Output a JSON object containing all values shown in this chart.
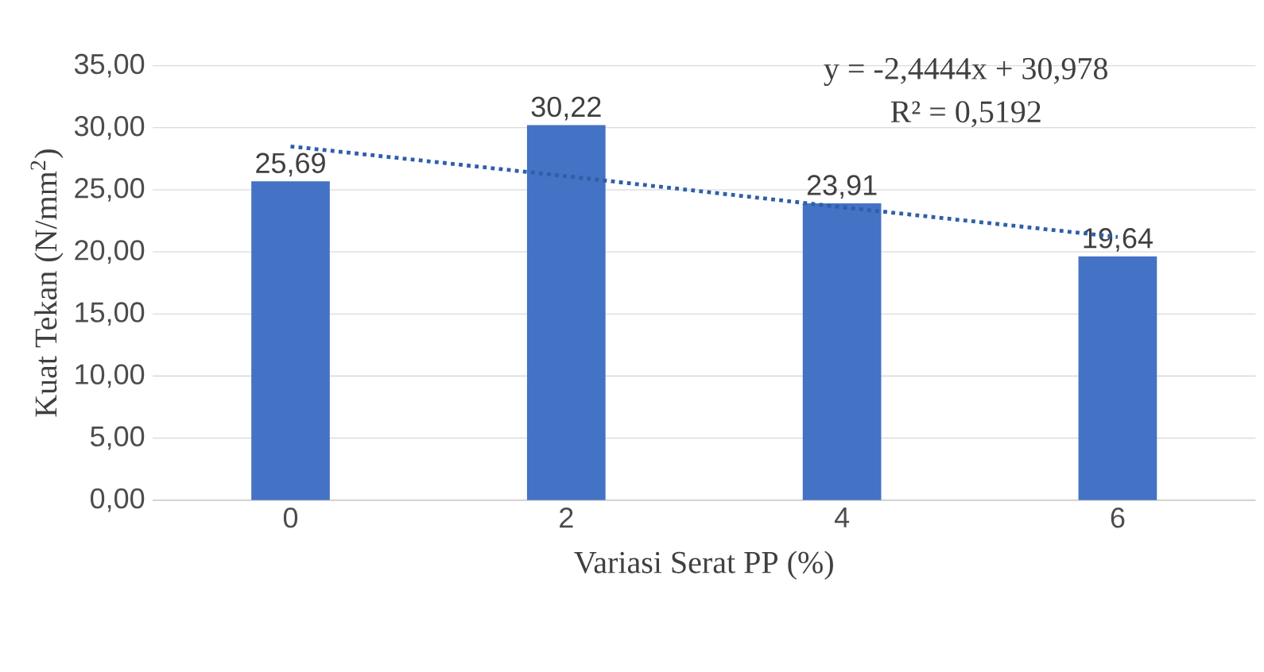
{
  "chart_data": {
    "type": "bar",
    "xlabel": "Variasi Serat PP (%)",
    "ylabel": "Kuat Tekan (N/mm$^{2}$)",
    "categories": [
      "0",
      "2",
      "4",
      "6"
    ],
    "series": [
      {
        "color": "#4472c4",
        "values": [
          25.69,
          30.22,
          23.91,
          19.64
        ],
        "value_labels": [
          "25,69",
          "30,22",
          "23,91",
          "19,64"
        ]
      },
      {
        "type": "line",
        "x": [
          "0",
          "2",
          "4",
          "6"
        ],
        "values": [
          28.5,
          26.1,
          23.6,
          21.2
        ],
        "color": "#2e5fa8",
        "line_style": "dotted",
        "marker": "none"
      }
    ],
    "ylim": [
      0,
      35
    ],
    "yticks": [
      {
        "value": 0,
        "label": "0,00"
      },
      {
        "value": 5,
        "label": "5,00"
      },
      {
        "value": 10,
        "label": "10,00"
      },
      {
        "value": 15,
        "label": "15,00"
      },
      {
        "value": 20,
        "label": "20,00"
      },
      {
        "value": 25,
        "label": "25,00"
      },
      {
        "value": 30,
        "label": "30,00"
      },
      {
        "value": 35,
        "label": "35,00"
      }
    ],
    "grid": "y",
    "annotations": [
      "y = -2,4444x + 30,978",
      "R² = 0,5192"
    ]
  }
}
